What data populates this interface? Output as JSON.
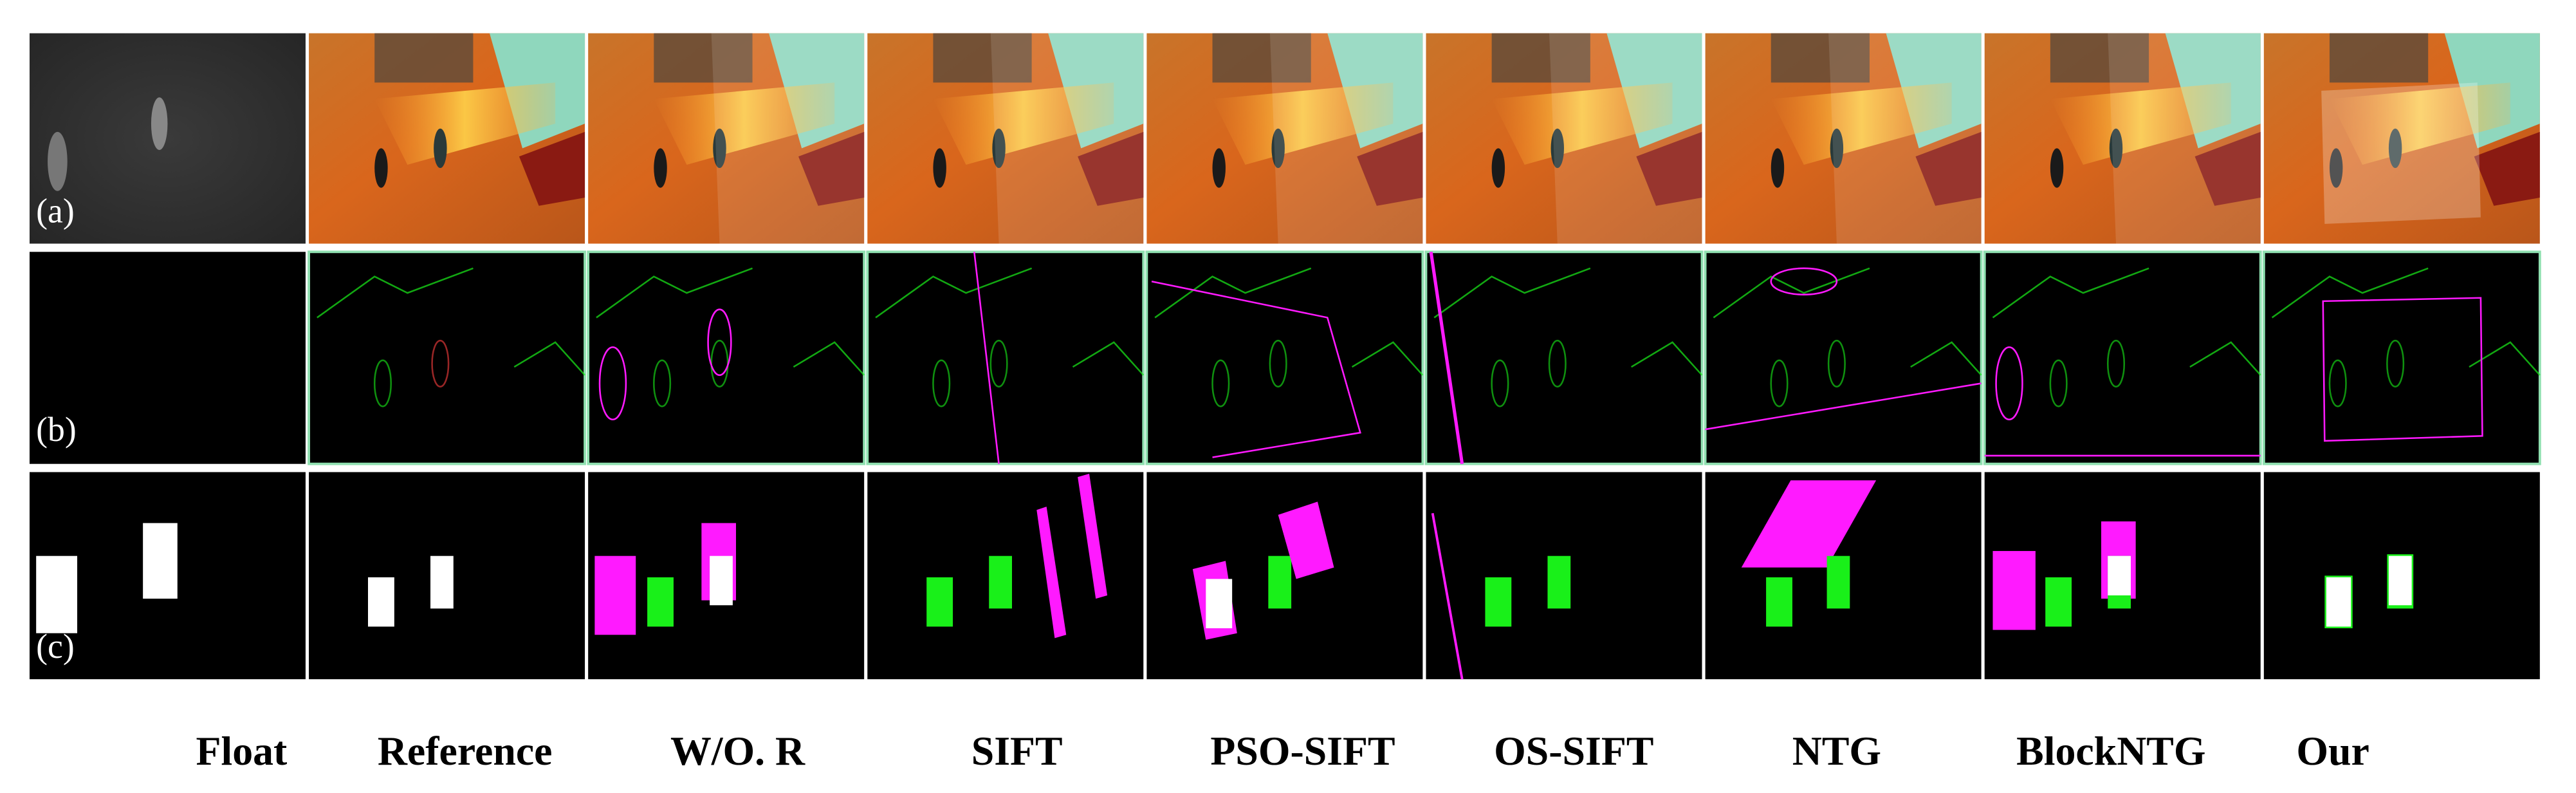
{
  "row_labels": [
    "(a)",
    "(b)",
    "(c)"
  ],
  "column_labels": [
    "Float",
    "Reference",
    "W/O. R",
    "SIFT",
    "PSO-SIFT",
    "OS-SIFT",
    "NTG",
    "BlockNTG",
    "Our"
  ]
}
